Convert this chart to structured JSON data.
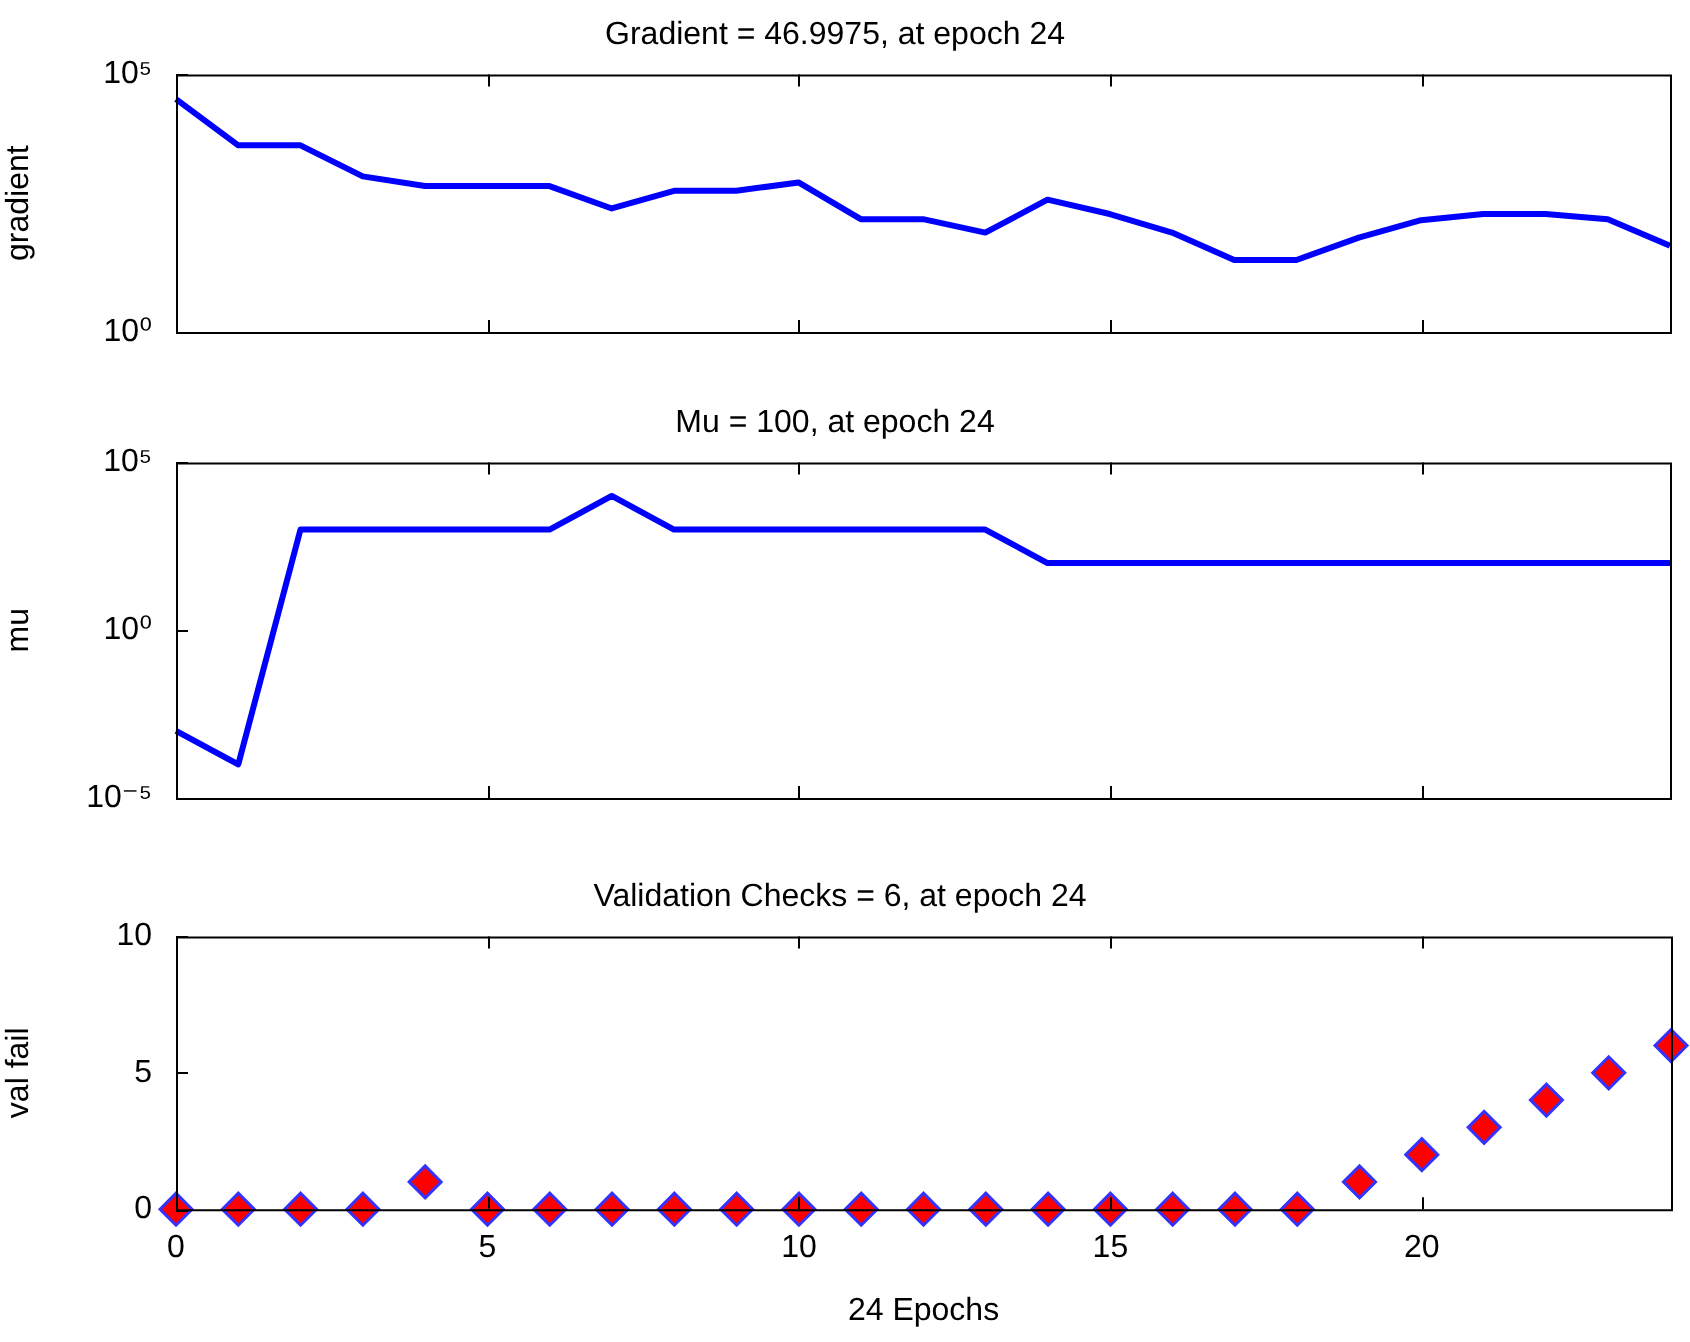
{
  "chart_data": [
    {
      "type": "line",
      "title": "Gradient = 46.9975, at epoch 24",
      "ylabel": "gradient",
      "color": "#0000ff",
      "x": [
        0,
        1,
        2,
        3,
        4,
        5,
        6,
        7,
        8,
        9,
        10,
        11,
        12,
        13,
        14,
        15,
        16,
        17,
        18,
        19,
        20,
        21,
        22,
        23,
        24
      ],
      "values": [
        33000,
        4200,
        4200,
        1050,
        680,
        680,
        680,
        250,
        550,
        550,
        800,
        155,
        155,
        85,
        370,
        195,
        85,
        25,
        25,
        68,
        148,
        195,
        195,
        155,
        46.9975
      ],
      "xlim": [
        0,
        24
      ],
      "xticks": [
        {
          "value": 0,
          "label": null
        },
        {
          "value": 5,
          "label": null
        },
        {
          "value": 10,
          "label": null
        },
        {
          "value": 15,
          "label": null
        },
        {
          "value": 20,
          "label": null
        }
      ],
      "ylim": [
        1,
        100000
      ],
      "yticks": [
        {
          "value": 1,
          "label": "10⁰"
        },
        {
          "value": 100000,
          "label": "10⁵"
        }
      ],
      "log": "y",
      "tick_labels": "y",
      "grid": false,
      "legend": false
    },
    {
      "type": "line",
      "title": "Mu = 100, at epoch 24",
      "ylabel": "mu",
      "color": "#0000ff",
      "x": [
        0,
        1,
        2,
        3,
        4,
        5,
        6,
        7,
        8,
        9,
        10,
        11,
        12,
        13,
        14,
        15,
        16,
        17,
        18,
        19,
        20,
        21,
        22,
        23,
        24
      ],
      "values": [
        0.001,
        0.0001,
        1000,
        1000,
        1000,
        1000,
        1000,
        10000,
        1000,
        1000,
        1000,
        1000,
        1000,
        1000,
        100,
        100,
        100,
        100,
        100,
        100,
        100,
        100,
        100,
        100,
        100
      ],
      "xlim": [
        0,
        24
      ],
      "xticks": [
        {
          "value": 0,
          "label": null
        },
        {
          "value": 5,
          "label": null
        },
        {
          "value": 10,
          "label": null
        },
        {
          "value": 15,
          "label": null
        },
        {
          "value": 20,
          "label": null
        }
      ],
      "ylim": [
        1e-05,
        100000
      ],
      "yticks": [
        {
          "value": 1e-05,
          "label": "10⁻⁵"
        },
        {
          "value": 1,
          "label": "10⁰"
        },
        {
          "value": 100000,
          "label": "10⁵"
        }
      ],
      "log": "y",
      "tick_labels": "y",
      "grid": false,
      "legend": false
    },
    {
      "type": "scatter",
      "title": "Validation Checks = 6, at epoch 24",
      "xlabel": "24 Epochs",
      "ylabel": "val fail",
      "color": "#ff0000",
      "marker": "diamond",
      "x": [
        0,
        1,
        2,
        3,
        4,
        5,
        6,
        7,
        8,
        9,
        10,
        11,
        12,
        13,
        14,
        15,
        16,
        17,
        18,
        19,
        20,
        21,
        22,
        23,
        24
      ],
      "values": [
        0,
        0,
        0,
        0,
        1,
        0,
        0,
        0,
        0,
        0,
        0,
        0,
        0,
        0,
        0,
        0,
        0,
        0,
        0,
        1,
        2,
        3,
        4,
        5,
        6
      ],
      "xlim": [
        0,
        24
      ],
      "xticks": [
        0,
        5,
        10,
        15,
        20
      ],
      "ylim": [
        0,
        10
      ],
      "yticks": [
        0,
        5,
        10
      ],
      "grid": false,
      "legend": false
    }
  ]
}
